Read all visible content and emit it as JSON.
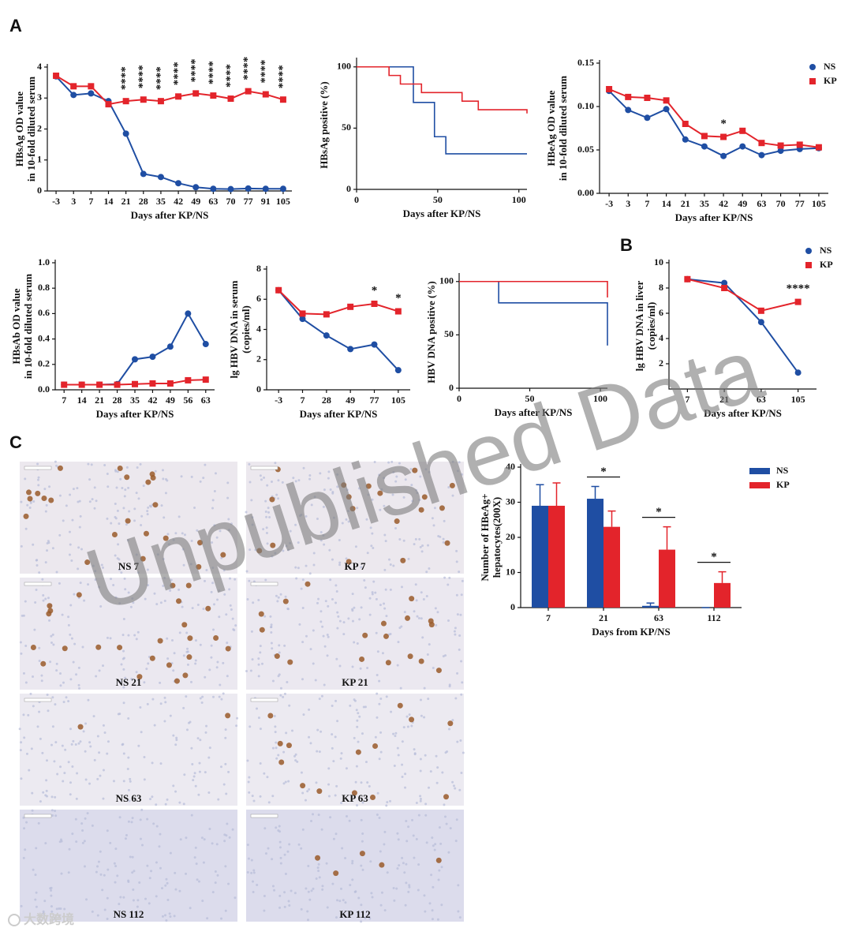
{
  "panel_labels": [
    "A",
    "B",
    "C"
  ],
  "watermark": "Unpublished Data",
  "logo": "大数跨境",
  "micrographs": [
    "NS 7",
    "KP 7",
    "NS 21",
    "KP 21",
    "NS 63",
    "KP 63",
    "NS 112",
    "KP 112"
  ],
  "chart_data": [
    {
      "type": "line",
      "ylabel": [
        "HBsAg OD value",
        "in 10-fold diluted serum"
      ],
      "xlabel": "Days after KP/NS",
      "categories": [
        "-3",
        "3",
        "7",
        "14",
        "21",
        "28",
        "35",
        "42",
        "49",
        "63",
        "70",
        "77",
        "91",
        "105"
      ],
      "series": [
        {
          "name": "NS",
          "color": "#1f4ea3",
          "marker": "circle",
          "values": [
            3.7,
            3.1,
            3.15,
            2.9,
            1.85,
            0.55,
            0.45,
            0.25,
            0.12,
            0.07,
            0.06,
            0.08,
            0.07,
            0.07
          ]
        },
        {
          "name": "KP",
          "color": "#e3242b",
          "marker": "square",
          "values": [
            3.72,
            3.38,
            3.38,
            2.8,
            2.9,
            2.95,
            2.9,
            3.05,
            3.15,
            3.08,
            2.98,
            3.22,
            3.12,
            2.95
          ]
        }
      ],
      "ylim": [
        0,
        4
      ],
      "yticks": [
        0,
        1,
        2,
        3,
        4
      ],
      "annotations": [
        {
          "text": "****",
          "category": "21"
        },
        {
          "text": "****",
          "category": "28"
        },
        {
          "text": "****",
          "category": "35"
        },
        {
          "text": "****",
          "category": "42"
        },
        {
          "text": "****",
          "category": "49"
        },
        {
          "text": "****",
          "category": "63"
        },
        {
          "text": "****",
          "category": "70"
        },
        {
          "text": "****",
          "category": "77"
        },
        {
          "text": "****",
          "category": "91"
        },
        {
          "text": "****",
          "category": "105"
        }
      ]
    },
    {
      "type": "step",
      "ylabel": [
        "HBsAg positive (%)"
      ],
      "xlabel": "Days after KP/NS",
      "series": [
        {
          "name": "NS",
          "color": "#1f4ea3",
          "x": [
            0,
            35,
            48,
            55,
            105
          ],
          "values": [
            100,
            71,
            43,
            29,
            29
          ]
        },
        {
          "name": "KP",
          "color": "#e3242b",
          "x": [
            0,
            20,
            27,
            40,
            65,
            75,
            105
          ],
          "values": [
            100,
            93,
            86,
            79,
            72,
            65,
            62
          ]
        }
      ],
      "xlim": [
        0,
        105
      ],
      "xticks": [
        0,
        50,
        100
      ],
      "ylim": [
        0,
        105
      ],
      "yticks": [
        0,
        50,
        100
      ]
    },
    {
      "type": "line",
      "ylabel": [
        "HBeAg OD value",
        "in 10-fold diluted serum"
      ],
      "xlabel": "Days after KP/NS",
      "categories": [
        "-3",
        "3",
        "7",
        "14",
        "21",
        "35",
        "42",
        "49",
        "63",
        "70",
        "77",
        "105"
      ],
      "series": [
        {
          "name": "NS",
          "color": "#1f4ea3",
          "marker": "circle",
          "values": [
            0.118,
            0.096,
            0.087,
            0.097,
            0.062,
            0.054,
            0.043,
            0.054,
            0.044,
            0.049,
            0.051,
            0.052
          ]
        },
        {
          "name": "KP",
          "color": "#e3242b",
          "marker": "square",
          "values": [
            0.12,
            0.111,
            0.11,
            0.107,
            0.08,
            0.066,
            0.065,
            0.072,
            0.058,
            0.055,
            0.056,
            0.053
          ]
        }
      ],
      "ylim": [
        0,
        0.15
      ],
      "yticks": [
        {
          "value": 0,
          "label": "0.00"
        },
        {
          "value": 0.05,
          "label": "0.05"
        },
        {
          "value": 0.1,
          "label": "0.10"
        },
        {
          "value": 0.15,
          "label": "0.15"
        }
      ],
      "legend": true,
      "annotations": [
        {
          "text": "*",
          "category": "42"
        }
      ]
    },
    {
      "type": "line",
      "ylabel": [
        "HBsAb OD value",
        "in 10-fold diluted serum"
      ],
      "xlabel": "Days after KP/NS",
      "categories": [
        "7",
        "14",
        "21",
        "28",
        "35",
        "42",
        "49",
        "56",
        "63"
      ],
      "series": [
        {
          "name": "NS",
          "color": "#1f4ea3",
          "marker": "circle",
          "values": [
            0.04,
            0.04,
            0.04,
            0.045,
            0.24,
            0.26,
            0.34,
            0.6,
            0.36
          ]
        },
        {
          "name": "KP",
          "color": "#e3242b",
          "marker": "square",
          "values": [
            0.04,
            0.04,
            0.04,
            0.04,
            0.045,
            0.05,
            0.05,
            0.075,
            0.08
          ]
        }
      ],
      "ylim": [
        0,
        1
      ],
      "yticks": [
        {
          "value": 0,
          "label": "0.0"
        },
        {
          "value": 0.2,
          "label": "0.2"
        },
        {
          "value": 0.4,
          "label": "0.4"
        },
        {
          "value": 0.6,
          "label": "0.6"
        },
        {
          "value": 0.8,
          "label": "0.8"
        },
        {
          "value": 1,
          "label": "1.0"
        }
      ]
    },
    {
      "type": "line",
      "ylabel": [
        "lg HBV DNA in serum",
        "(copies/ml)"
      ],
      "xlabel": "Days after KP/NS",
      "categories": [
        "-3",
        "7",
        "28",
        "49",
        "77",
        "105"
      ],
      "series": [
        {
          "name": "NS",
          "color": "#1f4ea3",
          "marker": "circle",
          "values": [
            6.6,
            4.7,
            3.6,
            2.7,
            3.0,
            1.3
          ]
        },
        {
          "name": "KP",
          "color": "#e3242b",
          "marker": "square",
          "values": [
            6.6,
            5.05,
            5.0,
            5.5,
            5.7,
            5.2
          ]
        }
      ],
      "ylim": [
        0,
        8
      ],
      "yticks": [
        0,
        2,
        4,
        6,
        8
      ],
      "annotations": [
        {
          "text": "*",
          "category": "77"
        },
        {
          "text": "*",
          "category": "105"
        }
      ]
    },
    {
      "type": "step",
      "ylabel": [
        "HBV DNA positive (%)"
      ],
      "xlabel": "Days after KP/NS",
      "series": [
        {
          "name": "NS",
          "color": "#1f4ea3",
          "x": [
            0,
            28,
            105
          ],
          "values": [
            100,
            80,
            40
          ]
        },
        {
          "name": "KP",
          "color": "#e3242b",
          "x": [
            0,
            105
          ],
          "values": [
            100,
            85
          ]
        }
      ],
      "xlim": [
        0,
        105
      ],
      "xticks": [
        0,
        50,
        100
      ],
      "ylim": [
        0,
        105
      ],
      "yticks": [
        0,
        50,
        100
      ]
    },
    {
      "type": "line",
      "ylabel": [
        "lg HBV DNA in liver",
        "(copies/ml)"
      ],
      "xlabel": "Days after KP/NS",
      "categories": [
        "7",
        "21",
        "63",
        "105"
      ],
      "series": [
        {
          "name": "NS",
          "color": "#1f4ea3",
          "marker": "circle",
          "values": [
            8.7,
            8.4,
            5.3,
            1.3
          ]
        },
        {
          "name": "KP",
          "color": "#e3242b",
          "marker": "square",
          "values": [
            8.7,
            8.0,
            6.2,
            6.9
          ]
        }
      ],
      "ylim": [
        0,
        10
      ],
      "yticks": [
        2,
        4,
        6,
        8,
        10
      ],
      "legend": true,
      "annotations": [
        {
          "text": "****",
          "category": "105"
        }
      ]
    },
    {
      "type": "bar",
      "ylabel": [
        "Number of HBeAg+",
        "hepatocytes(200X)"
      ],
      "xlabel": "Days from KP/NS",
      "categories": [
        "7",
        "21",
        "63",
        "112"
      ],
      "series": [
        {
          "name": "NS",
          "color": "#1f4ea3",
          "values": [
            29,
            31,
            0.5,
            0
          ],
          "errors": [
            6,
            3.5,
            0.8,
            0
          ]
        },
        {
          "name": "KP",
          "color": "#e3242b",
          "values": [
            29,
            23,
            16.5,
            7
          ],
          "errors": [
            6.5,
            4.5,
            6.5,
            3.2
          ]
        }
      ],
      "ylim": [
        0,
        40
      ],
      "yticks": [
        0,
        10,
        20,
        30,
        40
      ],
      "legend": true,
      "annotations": [
        {
          "text": "*",
          "category": "21"
        },
        {
          "text": "*",
          "category": "63"
        },
        {
          "text": "*",
          "category": "112"
        }
      ]
    }
  ]
}
